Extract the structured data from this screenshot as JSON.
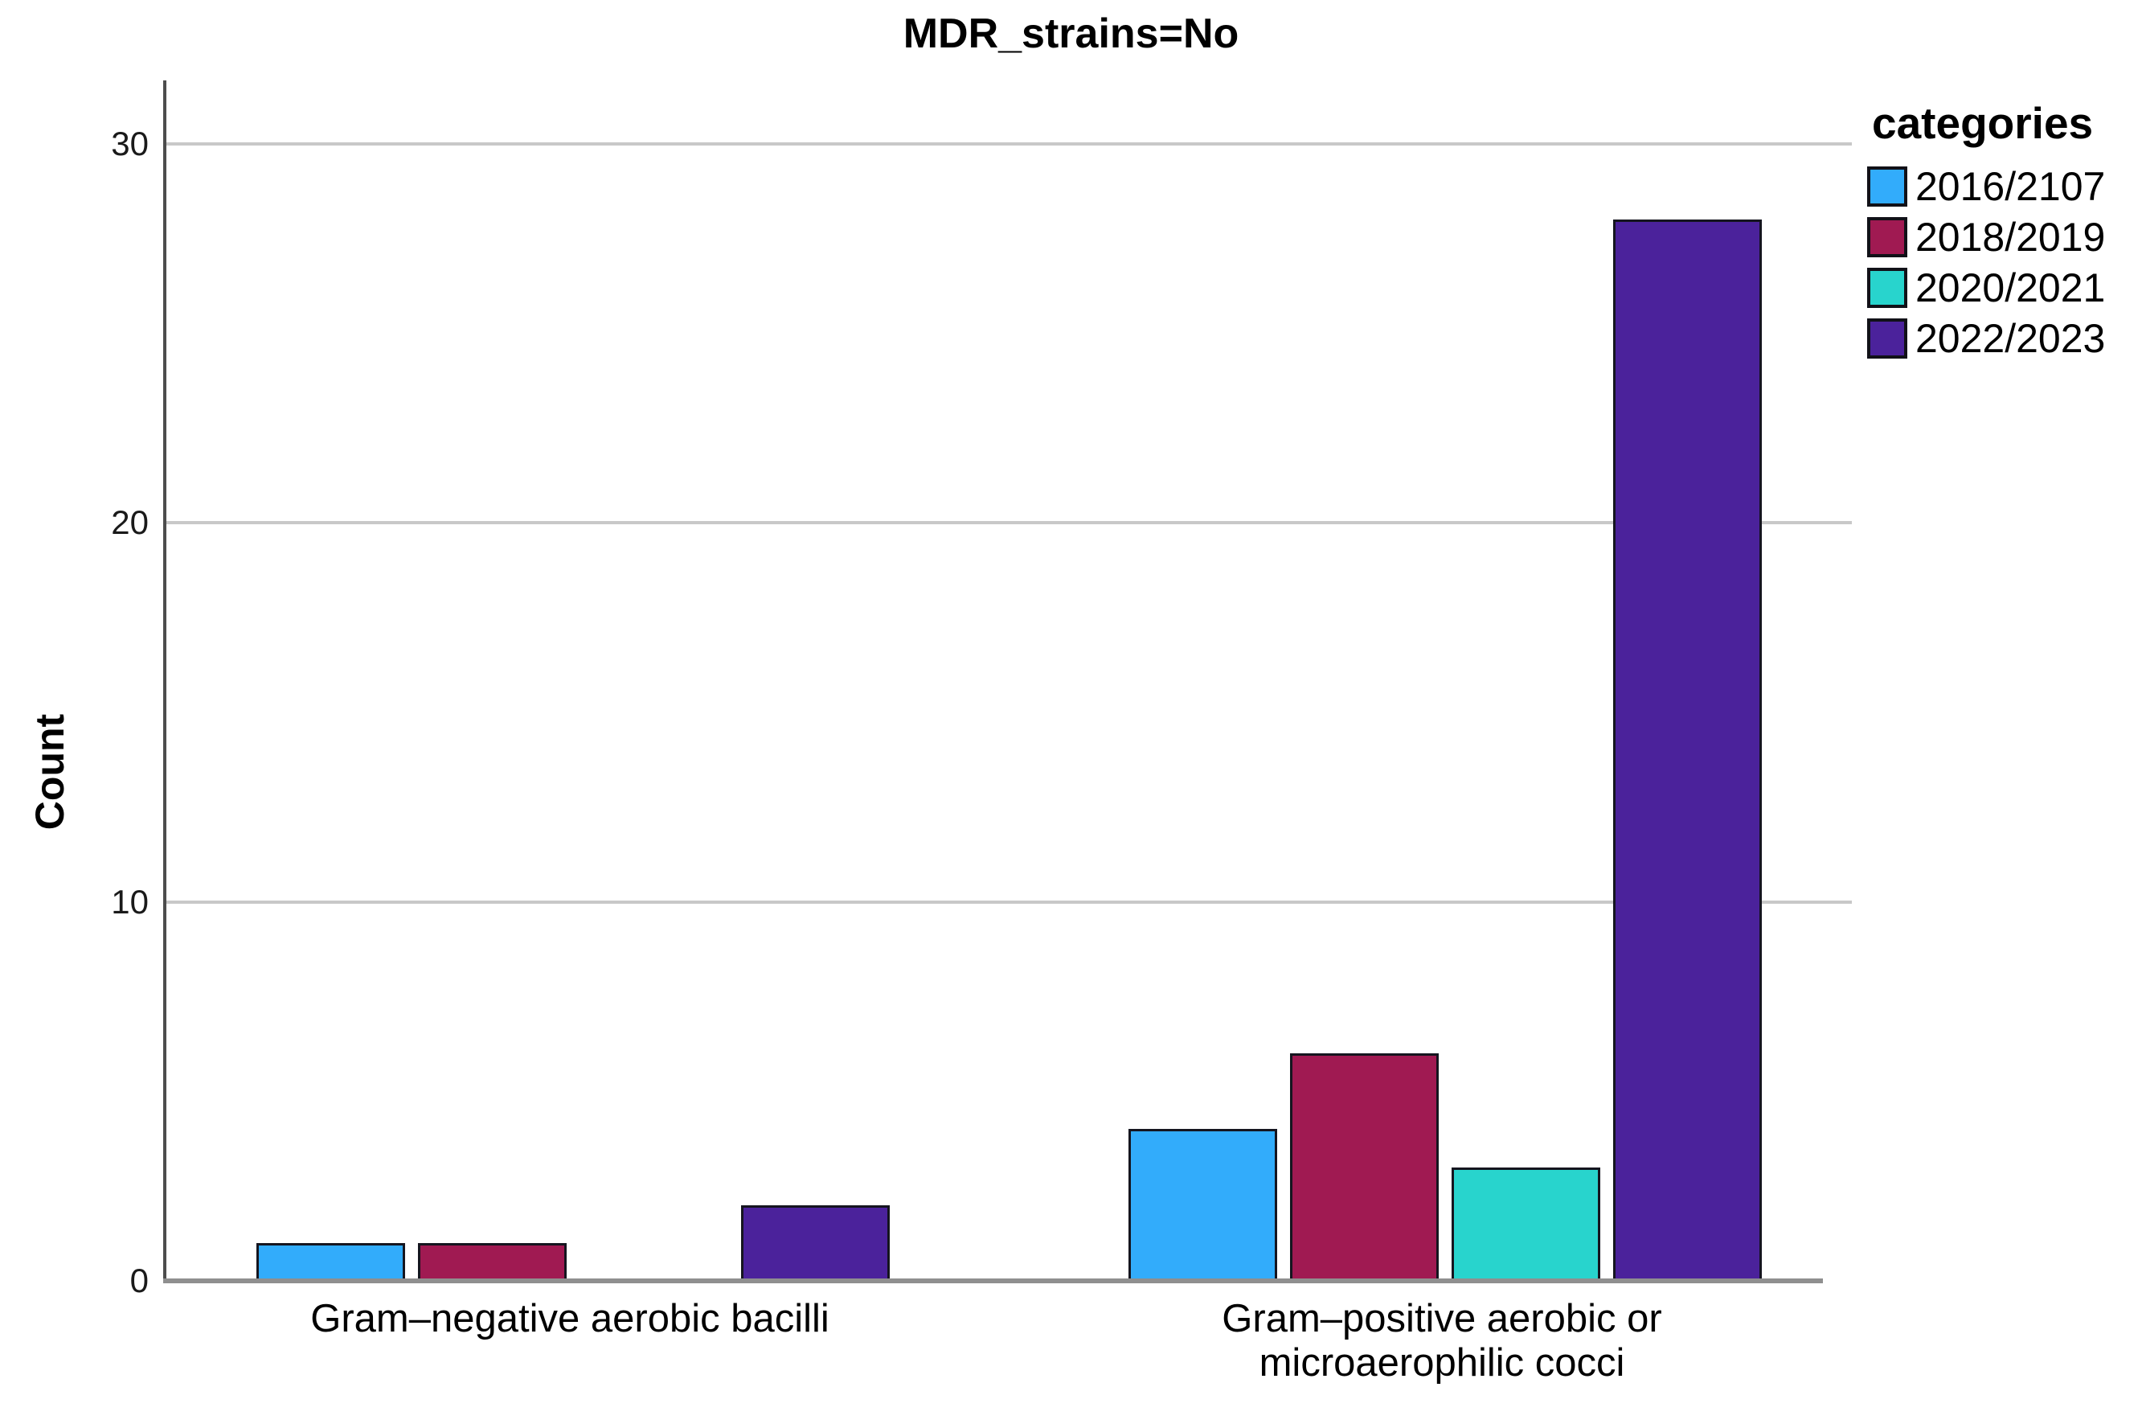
{
  "chart_data": {
    "type": "bar",
    "title": "MDR_strains=No",
    "xlabel": "",
    "ylabel": "Count",
    "categories": [
      "Gram–negative aerobic bacilli",
      "Gram–positive aerobic or\nmicroaerophilic cocci"
    ],
    "series": [
      {
        "name": "2016/2107",
        "color": "#32ACFB",
        "values": [
          1,
          4
        ]
      },
      {
        "name": "2018/2019",
        "color": "#A01A52",
        "values": [
          1,
          6
        ]
      },
      {
        "name": "2020/2021",
        "color": "#28D4CD",
        "values": [
          0,
          3
        ]
      },
      {
        "name": "2022/2023",
        "color": "#4B229B",
        "values": [
          2,
          28
        ]
      }
    ],
    "yticks": [
      0,
      10,
      20,
      30
    ],
    "ylim": [
      0,
      31.7
    ],
    "grid": true,
    "legend_title": "categories",
    "legend_position": "top-right"
  },
  "colors": {
    "gridline": "#c8c8c8",
    "y_axis_line": "#4d4d4d",
    "x_axis_line": "#8f8f8f",
    "bar_border": "#15151f",
    "text": "#000000"
  }
}
